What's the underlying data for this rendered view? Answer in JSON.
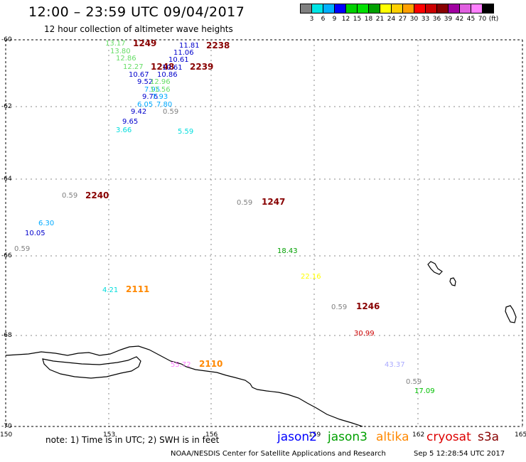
{
  "title": "12:00 – 23:59 UTC 09/04/2017",
  "subtitle": "12 hour collection of altimeter wave heights",
  "scale": {
    "colors": [
      "#808080",
      "#00e5e5",
      "#00b0ff",
      "#0000ff",
      "#00d000",
      "#00e000",
      "#00a000",
      "#ffff00",
      "#ffd000",
      "#ffa000",
      "#ff0000",
      "#cc0000",
      "#880000",
      "#a000a0",
      "#e060e0",
      "#ff80ff",
      "#000000"
    ],
    "labels": [
      "3",
      "6",
      "9",
      "12",
      "15",
      "18",
      "21",
      "24",
      "27",
      "30",
      "33",
      "36",
      "39",
      "42",
      "45",
      "70",
      "(ft)"
    ]
  },
  "axes": {
    "lat_labels": [
      "-60",
      "-62",
      "-64",
      "-66",
      "-68",
      "-70"
    ],
    "lon_labels": [
      "150",
      "153",
      "156",
      "159",
      "162",
      "165"
    ]
  },
  "observations": [
    {
      "text": "13.17",
      "color": "#66dd66"
    },
    {
      "text": "1249",
      "color": "#880000"
    },
    {
      "text": "11.81",
      "color": "#0000cc"
    },
    {
      "text": "2238",
      "color": "#880000"
    },
    {
      "text": "13.80",
      "color": "#66dd66"
    },
    {
      "text": "11.06",
      "color": "#0000cc"
    },
    {
      "text": "12.86",
      "color": "#66dd66"
    },
    {
      "text": "10.61",
      "color": "#0000cc"
    },
    {
      "text": "12.27",
      "color": "#66dd66"
    },
    {
      "text": "1248",
      "color": "#880000"
    },
    {
      "text": "10.61",
      "color": "#0000cc"
    },
    {
      "text": "2239",
      "color": "#880000"
    },
    {
      "text": "10.67",
      "color": "#0000cc"
    },
    {
      "text": "10.86",
      "color": "#0000cc"
    },
    {
      "text": "9.52",
      "color": "#0000cc"
    },
    {
      "text": "12.96",
      "color": "#66dd66"
    },
    {
      "text": "7.95",
      "color": "#00aaff"
    },
    {
      "text": "11.56",
      "color": "#66dd66"
    },
    {
      "text": "9.76",
      "color": "#0000cc"
    },
    {
      "text": "7.93",
      "color": "#00aaff"
    },
    {
      "text": "6.05",
      "color": "#00aaff"
    },
    {
      "text": "7.80",
      "color": "#00aaff"
    },
    {
      "text": "9.42",
      "color": "#0000cc"
    },
    {
      "text": "0.59",
      "color": "#808080"
    },
    {
      "text": "9.65",
      "color": "#0000cc"
    },
    {
      "text": "3.66",
      "color": "#00dddd"
    },
    {
      "text": "5.59",
      "color": "#00dddd"
    },
    {
      "text": "0.59",
      "color": "#808080"
    },
    {
      "text": "2240",
      "color": "#880000"
    },
    {
      "text": "0.59",
      "color": "#808080"
    },
    {
      "text": "1247",
      "color": "#880000"
    },
    {
      "text": "6.30",
      "color": "#00aaff"
    },
    {
      "text": "10.05",
      "color": "#0000cc"
    },
    {
      "text": "0.59",
      "color": "#808080"
    },
    {
      "text": "18.43",
      "color": "#00a000"
    },
    {
      "text": "22.16",
      "color": "#ffff00"
    },
    {
      "text": "4.21",
      "color": "#00dddd"
    },
    {
      "text": "2111",
      "color": "#ff8800"
    },
    {
      "text": "0.59",
      "color": "#808080"
    },
    {
      "text": "1246",
      "color": "#880000"
    },
    {
      "text": "30.99",
      "color": "#cc0000"
    },
    {
      "text": "55.72",
      "color": "#ff80ff"
    },
    {
      "text": "2110",
      "color": "#ff8800"
    },
    {
      "text": "43.37",
      "color": "#aaaaff"
    },
    {
      "text": "0.59",
      "color": "#808080"
    },
    {
      "text": "17.09",
      "color": "#00c000"
    }
  ],
  "note": "note: 1) Time is in UTC; 2) SWH is in feet",
  "legend": [
    {
      "text": "jason2",
      "color": "#0000ff"
    },
    {
      "text": "jason3",
      "color": "#00a000"
    },
    {
      "text": "altika",
      "color": "#ff8800"
    },
    {
      "text": "cryosat",
      "color": "#dd0000"
    },
    {
      "text": "s3a",
      "color": "#880000"
    }
  ],
  "footer": "NOAA/NESDIS Center for Satellite Applications and Research",
  "footer_time": "Sep  5 12:28:54 UTC 2017"
}
